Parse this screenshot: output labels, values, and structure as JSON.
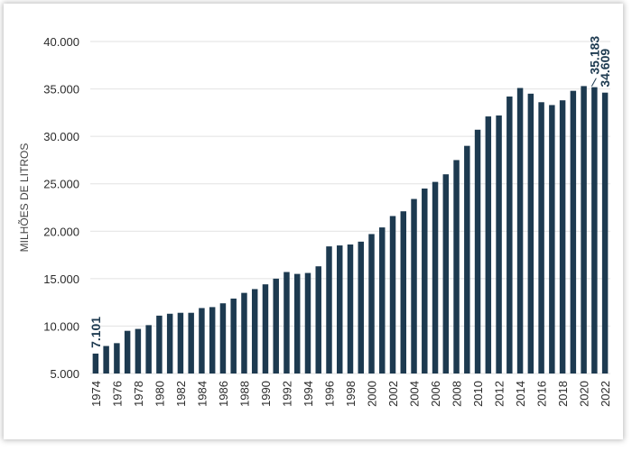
{
  "chart_data": {
    "type": "bar",
    "ylabel": "MILHÕES DE LITROS",
    "xlabel": "",
    "title": "",
    "ylim": [
      5000,
      40000
    ],
    "yticks": [
      5000,
      10000,
      15000,
      20000,
      25000,
      30000,
      35000,
      40000
    ],
    "ytick_labels": [
      "5.000",
      "10.000",
      "15.000",
      "20.000",
      "25.000",
      "30.000",
      "35.000",
      "40.000"
    ],
    "grid": true,
    "bar_color": "#1d3a50",
    "categories": [
      "1974",
      "1975",
      "1976",
      "1977",
      "1978",
      "1979",
      "1980",
      "1981",
      "1982",
      "1983",
      "1984",
      "1985",
      "1986",
      "1987",
      "1988",
      "1989",
      "1990",
      "1991",
      "1992",
      "1993",
      "1994",
      "1995",
      "1996",
      "1997",
      "1998",
      "1999",
      "2000",
      "2001",
      "2002",
      "2003",
      "2004",
      "2005",
      "2006",
      "2007",
      "2008",
      "2009",
      "2010",
      "2011",
      "2012",
      "2013",
      "2014",
      "2015",
      "2016",
      "2017",
      "2018",
      "2019",
      "2020",
      "2021",
      "2022"
    ],
    "xtick_labels": [
      "1974",
      "",
      "1976",
      "",
      "1978",
      "",
      "1980",
      "",
      "1982",
      "",
      "1984",
      "",
      "1986",
      "",
      "1988",
      "",
      "1990",
      "",
      "1992",
      "",
      "1994",
      "",
      "1996",
      "",
      "1998",
      "",
      "2000",
      "",
      "2002",
      "",
      "2004",
      "",
      "2006",
      "",
      "2008",
      "",
      "2010",
      "",
      "2012",
      "",
      "2014",
      "",
      "2016",
      "",
      "2018",
      "",
      "2020",
      "",
      "2022"
    ],
    "values": [
      7101,
      7900,
      8200,
      9500,
      9700,
      10100,
      11100,
      11300,
      11400,
      11400,
      11900,
      12000,
      12400,
      12900,
      13500,
      13900,
      14400,
      15000,
      15700,
      15500,
      15600,
      16300,
      18400,
      18500,
      18600,
      18900,
      19700,
      20400,
      21600,
      22100,
      23400,
      24500,
      25200,
      26000,
      27500,
      29000,
      30700,
      32100,
      32200,
      34200,
      35100,
      34500,
      33600,
      33300,
      33800,
      34800,
      35300,
      35183,
      34609
    ],
    "data_labels": [
      {
        "category": "1974",
        "text": "7.101"
      },
      {
        "category": "2021",
        "text": "35.183"
      },
      {
        "category": "2022",
        "text": "34.609"
      }
    ]
  }
}
